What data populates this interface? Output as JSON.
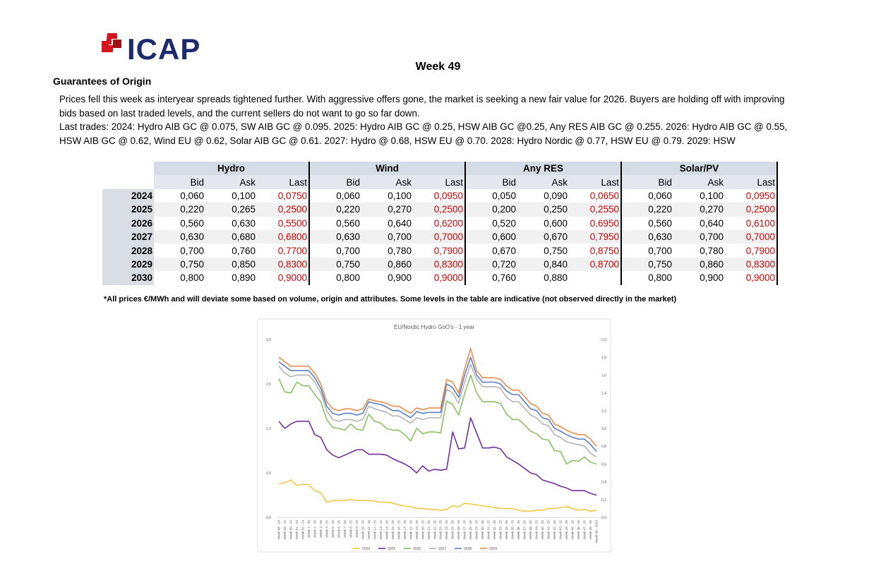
{
  "header": {
    "logo": "ICAP",
    "title": "Week 49",
    "section": "Guarantees of Origin"
  },
  "paragraphs": [
    "Prices fell this week as interyear spreads tightened further. With aggressive offers gone, the market is seeking a new fair value for 2026. Buyers are holding off with improving bids based on last traded levels, and the current sellers do not want to go so far down.",
    "Last trades:   2024: Hydro AIB GC @ 0.075, SW AIB GC @ 0.095.   2025: Hydro AIB GC @ 0.25, HSW AIB GC @0.25, Any RES AIB GC @ 0.255.   2026: Hydro AIB GC @ 0.55, HSW AIB GC @ 0.62, Wind EU @ 0.62, Solar AIB GC @ 0.61.   2027: Hydro @ 0.68, HSW EU @ 0.70.   2028: Hydro Nordic @ 0.77, HSW EU @ 0.79.   2029: HSW"
  ],
  "table": {
    "groups": [
      "Hydro",
      "Wind",
      "Any RES",
      "Solar/PV"
    ],
    "subheaders": [
      "Bid",
      "Ask",
      "Last"
    ],
    "rows": [
      [
        "2024",
        "0,060",
        "0,100",
        "0,0750",
        "0,060",
        "0,100",
        "0,0950",
        "0,050",
        "0,090",
        "0,0650",
        "0,060",
        "0,100",
        "0,0950"
      ],
      [
        "2025",
        "0,220",
        "0,265",
        "0,2500",
        "0,220",
        "0,270",
        "0,2500",
        "0,200",
        "0,250",
        "0,2550",
        "0,220",
        "0,270",
        "0,2500"
      ],
      [
        "2026",
        "0,560",
        "0,630",
        "0,5500",
        "0,560",
        "0,640",
        "0,6200",
        "0,520",
        "0,600",
        "0,6950",
        "0,560",
        "0,640",
        "0,6100"
      ],
      [
        "2027",
        "0,630",
        "0,680",
        "0,6800",
        "0,630",
        "0,700",
        "0,7000",
        "0,600",
        "0,670",
        "0,7950",
        "0,630",
        "0,700",
        "0,7000"
      ],
      [
        "2028",
        "0,700",
        "0,760",
        "0,7700",
        "0,700",
        "0,780",
        "0,7900",
        "0,670",
        "0,750",
        "0,8750",
        "0,700",
        "0,780",
        "0,7900"
      ],
      [
        "2029",
        "0,750",
        "0,850",
        "0,8300",
        "0,750",
        "0,860",
        "0,8300",
        "0,720",
        "0,840",
        "0,8700",
        "0,750",
        "0,860",
        "0,8300"
      ],
      [
        "2030",
        "0,800",
        "0,890",
        "0,9000",
        "0,800",
        "0,900",
        "0,9000",
        "0,760",
        "0,880",
        null,
        "0,800",
        "0,900",
        "0,9000"
      ]
    ],
    "footnote": "*All prices €/MWh and will deviate some based on volume, origin and attributes. Some levels in the table are indicative (not observed directly in the market)"
  },
  "chart_data": {
    "type": "line",
    "title": "EU/Nordic Hydro GoO's - 1 year",
    "categories": [
      "Week 48 - 24",
      "Week 49 - 24",
      "Week 50 - 24",
      "Week 51 - 24",
      "Week 52 - 24",
      "Week 1 - 25",
      "Week 2 - 25",
      "Week 3 - 25",
      "Week 4 - 25",
      "Week 5 - 25",
      "Week 6 - 25",
      "Week 7 - 25",
      "Week 8 - 25",
      "Week 9 - 25",
      "Week 10 - 25",
      "Week 11 - 25",
      "Week 12 - 25",
      "Week 13 - 25",
      "Week 14 - 25",
      "Week 15 - 25",
      "Week 16 - 25",
      "Week 17 - 25",
      "Week 18 - 25",
      "Week 19 - 25",
      "Week 20 - 25",
      "Week 21 - 25",
      "Week 22 - 25",
      "Week 23 - 25",
      "Week 24 - 25",
      "Week 25 - 25",
      "Week 26 - 25",
      "Week 27 - 25",
      "Week 28 - 25",
      "Week 29 - 25",
      "Week 30 - 25",
      "Week 31 - 25",
      "Week 32 - 25",
      "Week 33 - 25",
      "Week 34 - 25",
      "Week 35 - 25",
      "Week 36 - 25",
      "Week 37 - 25",
      "Week 38 - 25",
      "Week 39 - 25",
      "Week 40 - 25",
      "Week 41 - 25",
      "Week 42 - 25",
      "Week 43 - 25",
      "Week 44 - 25",
      "Week 45 - 25",
      "Week 46 - 25",
      "Week 47 - 25",
      "Week 48 - 25",
      "Week 49 - 2025"
    ],
    "series": [
      {
        "name": "2024",
        "color": "#f5c842",
        "values": [
          0.38,
          0.39,
          0.42,
          0.36,
          0.37,
          0.37,
          0.3,
          0.28,
          0.17,
          0.19,
          0.19,
          0.19,
          0.2,
          0.19,
          0.19,
          0.19,
          0.18,
          0.17,
          0.17,
          0.16,
          0.14,
          0.13,
          0.12,
          0.1,
          0.1,
          0.09,
          0.09,
          0.08,
          0.09,
          0.13,
          0.12,
          0.16,
          0.15,
          0.14,
          0.13,
          0.12,
          0.11,
          0.1,
          0.1,
          0.1,
          0.08,
          0.07,
          0.07,
          0.08,
          0.08,
          0.1,
          0.1,
          0.11,
          0.12,
          0.1,
          0.08,
          0.09,
          0.07,
          0.08
        ]
      },
      {
        "name": "2025",
        "color": "#7030a0",
        "values": [
          1.08,
          1.0,
          1.05,
          1.08,
          1.08,
          1.08,
          0.93,
          0.9,
          0.76,
          0.7,
          0.67,
          0.7,
          0.73,
          0.76,
          0.76,
          0.71,
          0.71,
          0.71,
          0.7,
          0.66,
          0.63,
          0.6,
          0.56,
          0.5,
          0.58,
          0.52,
          0.54,
          0.53,
          0.54,
          0.96,
          0.77,
          0.78,
          1.12,
          0.95,
          0.78,
          0.78,
          0.79,
          0.77,
          0.68,
          0.64,
          0.6,
          0.55,
          0.5,
          0.48,
          0.42,
          0.4,
          0.38,
          0.35,
          0.33,
          0.3,
          0.3,
          0.3,
          0.27,
          0.25
        ]
      },
      {
        "name": "2026",
        "color": "#8cc063",
        "values": [
          1.56,
          1.41,
          1.4,
          1.52,
          1.48,
          1.48,
          1.38,
          1.3,
          1.1,
          1.01,
          1.0,
          0.98,
          1.05,
          0.99,
          0.98,
          1.16,
          1.08,
          1.06,
          1.0,
          0.98,
          0.98,
          0.93,
          0.86,
          1.0,
          0.94,
          0.96,
          0.96,
          0.95,
          1.31,
          1.27,
          1.15,
          1.39,
          1.6,
          1.4,
          1.3,
          1.3,
          1.3,
          1.28,
          1.16,
          1.1,
          1.1,
          1.04,
          0.97,
          0.94,
          0.88,
          0.87,
          0.75,
          0.74,
          0.6,
          0.64,
          0.63,
          0.68,
          0.62,
          0.6
        ]
      },
      {
        "name": "2027",
        "color": "#b4b4b4",
        "values": [
          1.7,
          1.62,
          1.58,
          1.6,
          1.6,
          1.6,
          1.52,
          1.4,
          1.2,
          1.1,
          1.08,
          1.1,
          1.1,
          1.08,
          1.1,
          1.25,
          1.22,
          1.2,
          1.18,
          1.14,
          1.14,
          1.1,
          1.06,
          1.12,
          1.1,
          1.12,
          1.12,
          1.12,
          1.44,
          1.4,
          1.28,
          1.52,
          1.72,
          1.55,
          1.47,
          1.47,
          1.47,
          1.45,
          1.35,
          1.3,
          1.3,
          1.23,
          1.15,
          1.12,
          1.05,
          1.03,
          0.93,
          0.9,
          0.85,
          0.83,
          0.82,
          0.8,
          0.72,
          0.68
        ]
      },
      {
        "name": "2028",
        "color": "#5b7fc4",
        "values": [
          1.75,
          1.7,
          1.65,
          1.65,
          1.65,
          1.65,
          1.57,
          1.45,
          1.25,
          1.17,
          1.15,
          1.17,
          1.17,
          1.15,
          1.17,
          1.3,
          1.28,
          1.27,
          1.24,
          1.2,
          1.2,
          1.16,
          1.12,
          1.19,
          1.17,
          1.18,
          1.18,
          1.18,
          1.5,
          1.46,
          1.35,
          1.6,
          1.8,
          1.6,
          1.52,
          1.52,
          1.52,
          1.5,
          1.42,
          1.38,
          1.38,
          1.3,
          1.22,
          1.2,
          1.12,
          1.1,
          1.0,
          0.97,
          0.93,
          0.9,
          0.88,
          0.88,
          0.82,
          0.74
        ]
      },
      {
        "name": "2029",
        "color": "#ed8c4a",
        "values": [
          1.8,
          1.75,
          1.7,
          1.7,
          1.7,
          1.7,
          1.62,
          1.5,
          1.3,
          1.22,
          1.2,
          1.22,
          1.22,
          1.2,
          1.22,
          1.33,
          1.31,
          1.3,
          1.28,
          1.25,
          1.25,
          1.21,
          1.17,
          1.23,
          1.21,
          1.23,
          1.23,
          1.23,
          1.55,
          1.52,
          1.4,
          1.67,
          1.9,
          1.65,
          1.57,
          1.57,
          1.57,
          1.55,
          1.48,
          1.43,
          1.43,
          1.36,
          1.28,
          1.25,
          1.17,
          1.15,
          1.05,
          1.02,
          0.98,
          0.95,
          0.93,
          0.93,
          0.88,
          0.8
        ]
      }
    ],
    "ylim": [
      0,
      2
    ],
    "yticks": [
      {
        "value": 0,
        "label": "0,0"
      },
      {
        "value": 0.5,
        "label": "0,5"
      },
      {
        "value": 1,
        "label": "1,0"
      },
      {
        "value": 1.5,
        "label": "1,5"
      },
      {
        "value": 2,
        "label": "2,0"
      }
    ],
    "y2lim": [
      0,
      2
    ],
    "y2ticks": [
      {
        "value": 0,
        "label": "0,0"
      },
      {
        "value": 0.2,
        "label": "0,2"
      },
      {
        "value": 0.4,
        "label": "0,4"
      },
      {
        "value": 0.6,
        "label": "0,6"
      },
      {
        "value": 0.8,
        "label": "0,8"
      },
      {
        "value": 1,
        "label": "1,0"
      },
      {
        "value": 1.2,
        "label": "1,2"
      },
      {
        "value": 1.4,
        "label": "1,4"
      },
      {
        "value": 1.6,
        "label": "1,6"
      },
      {
        "value": 1.8,
        "label": "1,8"
      },
      {
        "value": 2,
        "label": "2,0"
      }
    ],
    "legend": "bottom"
  }
}
